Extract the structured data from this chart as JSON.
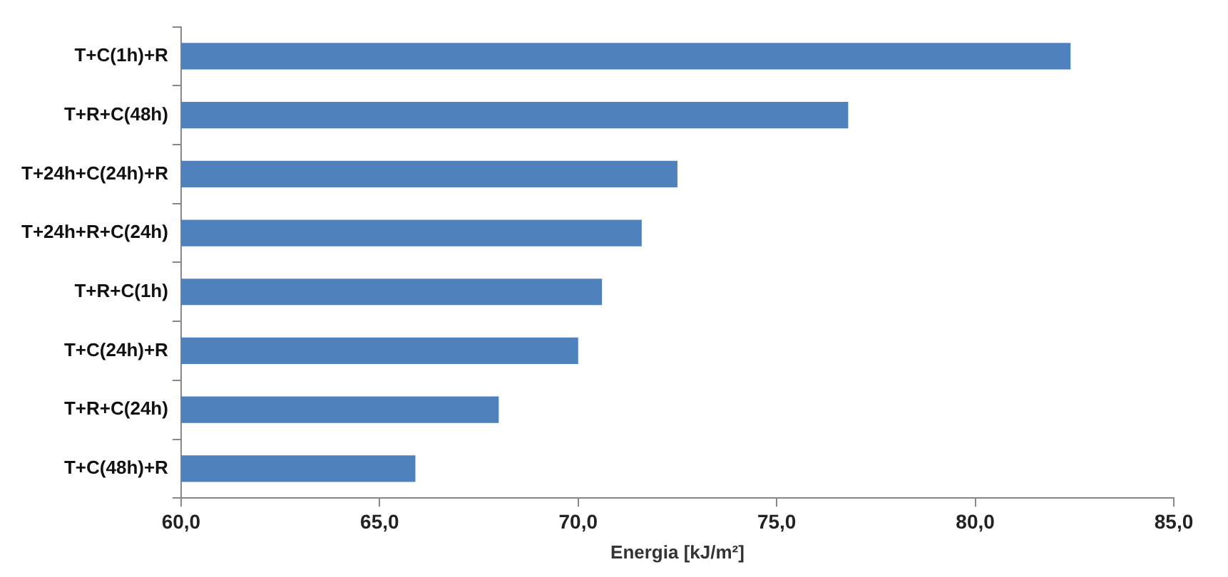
{
  "chart_data": {
    "type": "bar",
    "orientation": "horizontal",
    "xlabel": "Energia [kJ/m²]",
    "categories": [
      "T+C(1h)+R",
      "T+R+C(48h)",
      "T+24h+C(24h)+R",
      "T+24h+R+C(24h)",
      "T+R+C(1h)",
      "T+C(24h)+R",
      "T+R+C(24h)",
      "T+C(48h)+R"
    ],
    "values": [
      82.4,
      76.8,
      72.5,
      71.6,
      70.6,
      70.0,
      68.0,
      65.9
    ],
    "color": "#4f81bd",
    "xlim": [
      60,
      85
    ],
    "xticks": [
      {
        "value": 60,
        "label": "60,0"
      },
      {
        "value": 65,
        "label": "65,0"
      },
      {
        "value": 70,
        "label": "70,0"
      },
      {
        "value": 75,
        "label": "75,0"
      },
      {
        "value": 80,
        "label": "80,0"
      },
      {
        "value": 85,
        "label": "85,0"
      }
    ],
    "grid": false,
    "legend": false
  }
}
